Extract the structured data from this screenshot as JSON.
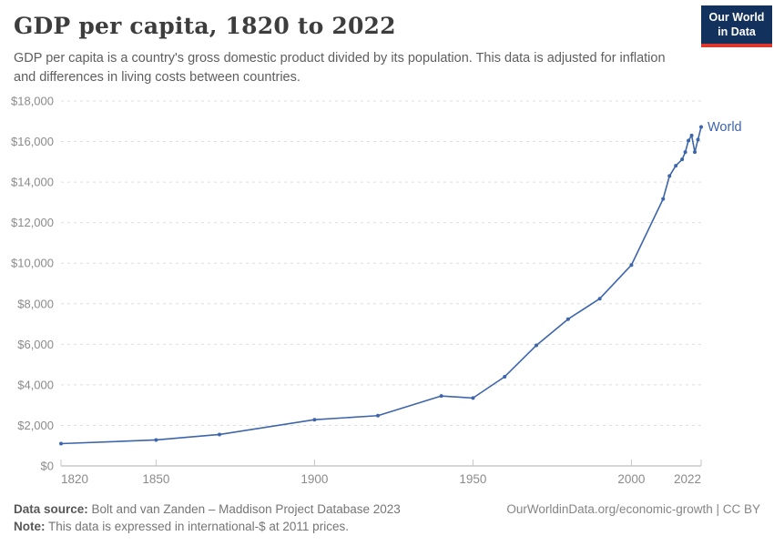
{
  "header": {
    "title": "GDP per capita, 1820 to 2022",
    "subtitle": "GDP per capita is a country's gross domestic product divided by its population. This data is adjusted for inflation and differences in living costs between countries.",
    "logo": {
      "line1": "Our World",
      "line2": "in Data"
    }
  },
  "footer": {
    "source_label": "Data source:",
    "source_text": "Bolt and van Zanden – Maddison Project Database 2023",
    "note_label": "Note:",
    "note_text": "This data is expressed in international-$ at 2011 prices.",
    "credit": "OurWorldinData.org/economic-growth | CC BY"
  },
  "chart_data": {
    "type": "line",
    "title": "GDP per capita, 1820 to 2022",
    "unit": "international-$ at 2011 prices",
    "grid": {
      "horizontal": true,
      "style": "dashed"
    },
    "legend_position": "end-of-line-label",
    "end_label": "World",
    "x_range": [
      1820,
      2022
    ],
    "y_range": [
      0,
      18000
    ],
    "x_ticks": [
      {
        "value": 1820,
        "label": "1820"
      },
      {
        "value": 1850,
        "label": "1850"
      },
      {
        "value": 1900,
        "label": "1900"
      },
      {
        "value": 1950,
        "label": "1950"
      },
      {
        "value": 2000,
        "label": "2000"
      },
      {
        "value": 2022,
        "label": "2022"
      }
    ],
    "y_ticks": [
      {
        "value": 0,
        "label": "$0"
      },
      {
        "value": 2000,
        "label": "$2,000"
      },
      {
        "value": 4000,
        "label": "$4,000"
      },
      {
        "value": 6000,
        "label": "$6,000"
      },
      {
        "value": 8000,
        "label": "$8,000"
      },
      {
        "value": 10000,
        "label": "$10,000"
      },
      {
        "value": 12000,
        "label": "$12,000"
      },
      {
        "value": 14000,
        "label": "$14,000"
      },
      {
        "value": 16000,
        "label": "$16,000"
      },
      {
        "value": 18000,
        "label": "$18,000"
      }
    ],
    "series": [
      {
        "name": "World",
        "color": "#3d65ab",
        "points": [
          [
            1820,
            1100
          ],
          [
            1850,
            1280
          ],
          [
            1870,
            1550
          ],
          [
            1900,
            2280
          ],
          [
            1920,
            2480
          ],
          [
            1940,
            3450
          ],
          [
            1950,
            3350
          ],
          [
            1960,
            4400
          ],
          [
            1970,
            5950
          ],
          [
            1980,
            7240
          ],
          [
            1990,
            8250
          ],
          [
            2000,
            9910
          ],
          [
            2010,
            13170
          ],
          [
            2012,
            14300
          ],
          [
            2014,
            14810
          ],
          [
            2016,
            15120
          ],
          [
            2017,
            15480
          ],
          [
            2018,
            16050
          ],
          [
            2019,
            16300
          ],
          [
            2020,
            15480
          ],
          [
            2021,
            16100
          ],
          [
            2022,
            16720
          ]
        ]
      }
    ],
    "colors": {
      "gridline": "#dedede",
      "axis_line": "#adadad",
      "tick_label": "#8b8b8b"
    }
  }
}
